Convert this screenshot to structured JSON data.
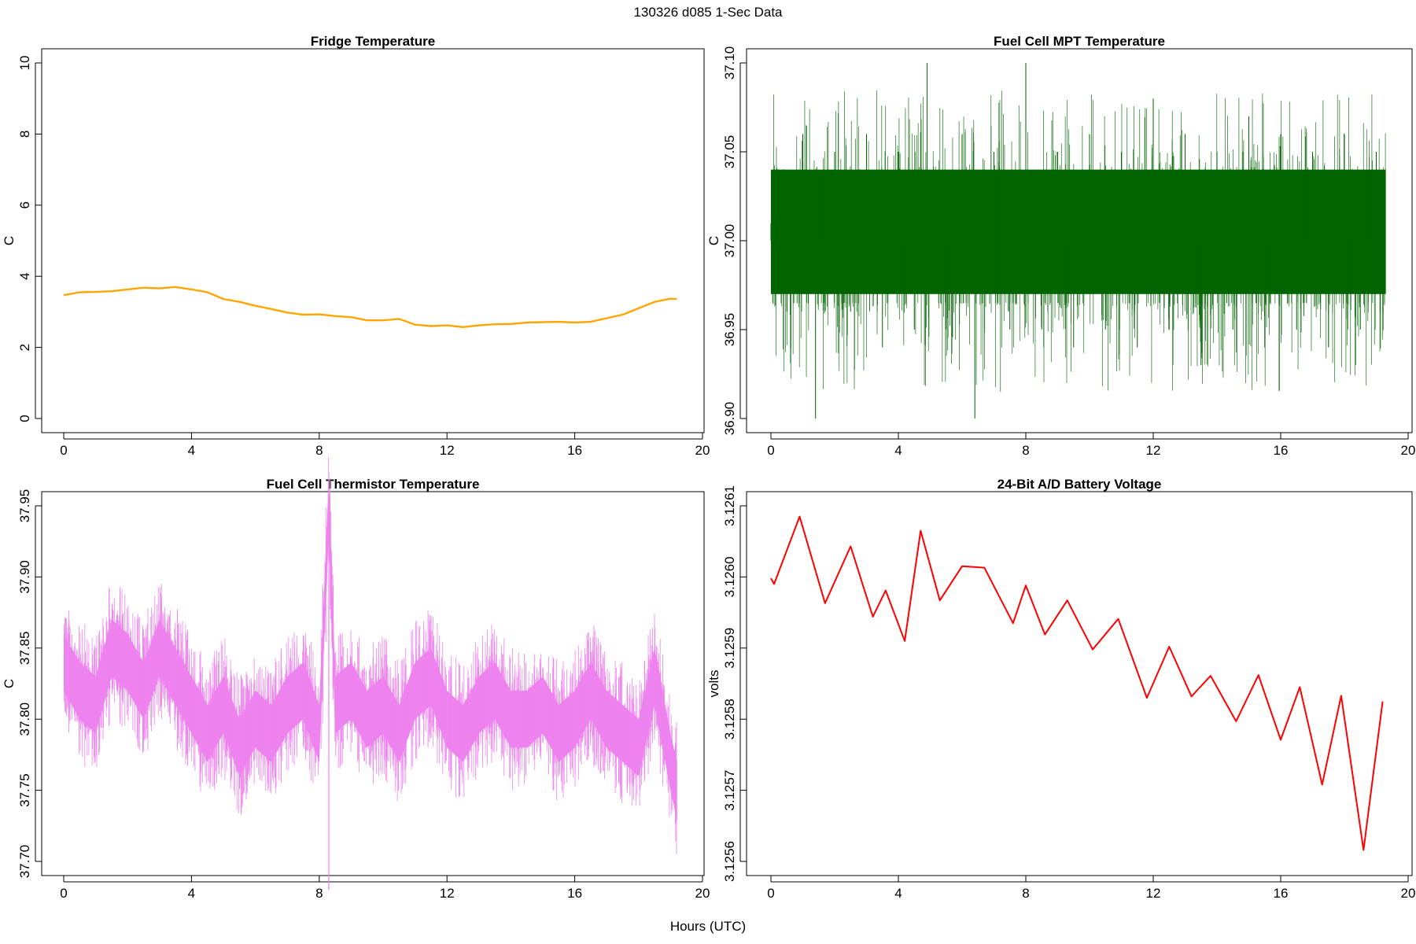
{
  "figure": {
    "title": "130326   d085   1-Sec Data",
    "xlabel": "Hours (UTC)"
  },
  "chart_data": [
    {
      "type": "line",
      "title": "Fridge Temperature",
      "xlabel": "Hours (UTC)",
      "ylabel": "C",
      "color": "#FFA500",
      "xlim": [
        0,
        20
      ],
      "xticks": [
        "0",
        "4",
        "8",
        "12",
        "16",
        "20"
      ],
      "ylim": [
        0,
        10
      ],
      "yticks": [
        "0",
        "2",
        "4",
        "6",
        "8",
        "10"
      ],
      "grid": false,
      "series": [
        {
          "x": [
            0,
            0.5,
            1,
            1.5,
            2,
            2.5,
            3,
            3.5,
            4,
            4.5,
            5,
            5.5,
            6,
            6.5,
            7,
            7.5,
            8,
            8.5,
            9,
            9.5,
            10,
            10.5,
            11,
            11.5,
            12,
            12.5,
            13,
            13.5,
            14,
            14.5,
            15,
            15.5,
            16,
            16.5,
            17,
            17.5,
            18,
            18.5,
            19,
            19.2
          ],
          "values": [
            3.47,
            3.55,
            3.56,
            3.58,
            3.63,
            3.68,
            3.66,
            3.7,
            3.63,
            3.55,
            3.36,
            3.28,
            3.17,
            3.08,
            2.98,
            2.92,
            2.93,
            2.88,
            2.85,
            2.76,
            2.76,
            2.8,
            2.64,
            2.6,
            2.62,
            2.57,
            2.62,
            2.65,
            2.66,
            2.7,
            2.71,
            2.72,
            2.7,
            2.72,
            2.82,
            2.92,
            3.1,
            3.28,
            3.37,
            3.36
          ]
        }
      ]
    },
    {
      "type": "line",
      "title": "Fuel Cell MPT Temperature",
      "xlabel": "Hours (UTC)",
      "ylabel": "C",
      "color": "#006400",
      "xlim": [
        0,
        20
      ],
      "xticks": [
        "0",
        "4",
        "8",
        "12",
        "16",
        "20"
      ],
      "ylim": [
        36.9,
        37.1
      ],
      "yticks": [
        "36.90",
        "36.95",
        "37.00",
        "37.05",
        "37.10"
      ],
      "grid": false,
      "series": [
        {
          "x": [
            0,
            0.5,
            1,
            1.4,
            2,
            2.5,
            3,
            3.5,
            4,
            4.5,
            4.9,
            5.5,
            6,
            6.4,
            7,
            7.5,
            8,
            8.5,
            9,
            9.5,
            10,
            10.5,
            11,
            11.5,
            12,
            12.5,
            13,
            13.5,
            14,
            14.5,
            15,
            15.5,
            16,
            16.5,
            17,
            17.5,
            18,
            18.5,
            19,
            19.3
          ],
          "values": [
            37.01,
            36.96,
            37.06,
            36.9,
            37.05,
            36.96,
            37.06,
            36.94,
            37.05,
            36.95,
            37.1,
            36.95,
            37.06,
            36.9,
            37.05,
            36.95,
            37.1,
            36.95,
            37.05,
            36.94,
            37.06,
            36.95,
            37.05,
            36.94,
            37.08,
            36.95,
            37.06,
            36.93,
            37.05,
            36.95,
            37.07,
            36.94,
            37.06,
            36.95,
            37.05,
            36.94,
            37.06,
            36.95,
            37.05,
            37.0
          ],
          "band_upper": 37.04,
          "band_lower": 36.97
        }
      ]
    },
    {
      "type": "line",
      "title": "Fuel Cell Thermistor Temperature",
      "xlabel": "Hours (UTC)",
      "ylabel": "C",
      "color": "#EE82EE",
      "xlim": [
        0,
        20
      ],
      "xticks": [
        "0",
        "4",
        "8",
        "12",
        "16",
        "20"
      ],
      "ylim": [
        37.7,
        37.95
      ],
      "yticks": [
        "37.70",
        "37.75",
        "37.80",
        "37.85",
        "37.90",
        "37.95"
      ],
      "grid": false,
      "series": [
        {
          "x": [
            0,
            0.5,
            1,
            1.5,
            2,
            2.5,
            3,
            3.5,
            4,
            4.5,
            5,
            5.5,
            6,
            6.5,
            7,
            7.5,
            8,
            8.3,
            8.5,
            9,
            9.5,
            10,
            10.5,
            11,
            11.5,
            12,
            12.5,
            13,
            13.5,
            14,
            14.5,
            15,
            15.5,
            16,
            16.5,
            17,
            17.5,
            18,
            18.5,
            19,
            19.2
          ],
          "values": [
            37.84,
            37.82,
            37.81,
            37.85,
            37.84,
            37.82,
            37.85,
            37.83,
            37.81,
            37.79,
            37.81,
            37.78,
            37.8,
            37.79,
            37.81,
            37.82,
            37.79,
            37.95,
            37.81,
            37.82,
            37.8,
            37.81,
            37.79,
            37.82,
            37.83,
            37.8,
            37.79,
            37.81,
            37.82,
            37.8,
            37.8,
            37.81,
            37.79,
            37.8,
            37.82,
            37.8,
            37.79,
            37.78,
            37.83,
            37.77,
            37.75
          ],
          "spike_low": 37.68,
          "band_half_width": 0.02
        }
      ]
    },
    {
      "type": "line",
      "title": "24-Bit A/D Battery Voltage",
      "xlabel": "Hours (UTC)",
      "ylabel": "volts",
      "color": "#FF0000",
      "xlim": [
        0,
        20
      ],
      "xticks": [
        "0",
        "4",
        "8",
        "12",
        "16",
        "20"
      ],
      "ylim": [
        3.1256,
        3.1261
      ],
      "yticks": [
        "3.1256",
        "3.1257",
        "3.1258",
        "3.1259",
        "3.1260",
        "3.1261"
      ],
      "grid": false,
      "series": [
        {
          "x": [
            0,
            0.1,
            0.9,
            1.7,
            2.5,
            3.2,
            3.6,
            4.2,
            4.7,
            5.3,
            6.0,
            6.7,
            7.6,
            8.0,
            8.6,
            9.3,
            10.1,
            10.9,
            11.8,
            12.5,
            13.2,
            13.8,
            14.6,
            15.3,
            16.0,
            16.6,
            17.3,
            17.9,
            18.6,
            19.2
          ],
          "values": [
            3.125998,
            3.12599,
            3.126085,
            3.125963,
            3.126043,
            3.125944,
            3.125981,
            3.12591,
            3.126065,
            3.125967,
            3.126015,
            3.126013,
            3.125935,
            3.125988,
            3.125919,
            3.125967,
            3.125898,
            3.125941,
            3.12583,
            3.125902,
            3.125832,
            3.125861,
            3.125797,
            3.125862,
            3.125771,
            3.125845,
            3.125708,
            3.125833,
            3.125616,
            3.125825
          ]
        }
      ]
    }
  ]
}
